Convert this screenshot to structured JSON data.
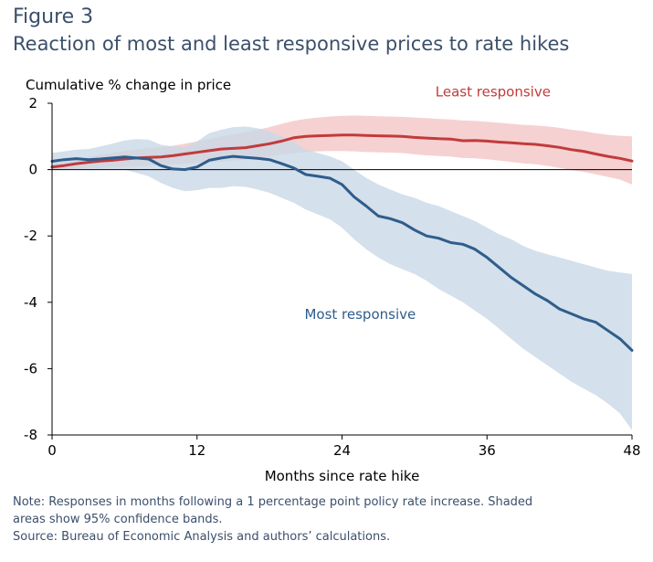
{
  "figure_label": "Figure 3",
  "title": "Reaction of most and least responsive prices to rate hikes",
  "note_lines": [
    "Note: Responses in months following a 1 percentage point policy rate increase. Shaded",
    "areas show 95% confidence bands."
  ],
  "source": "Source: Bureau of Economic Analysis and authors’ calculations.",
  "colors": {
    "least_line": "#c23b3b",
    "least_band": "#f4c9c9",
    "most_line": "#2f5d8c",
    "most_band": "#c9d8e6"
  },
  "chart_data": {
    "type": "line",
    "ylabel": "Cumulative % change in price",
    "xlabel": "Months since rate hike",
    "xlim": [
      0,
      48
    ],
    "ylim": [
      -8,
      2
    ],
    "xticks": [
      0,
      12,
      24,
      36,
      48
    ],
    "yticks": [
      2,
      0,
      -2,
      -4,
      -6,
      -8
    ],
    "x": [
      0,
      1,
      2,
      3,
      4,
      5,
      6,
      7,
      8,
      9,
      10,
      11,
      12,
      13,
      14,
      15,
      16,
      17,
      18,
      19,
      20,
      21,
      22,
      23,
      24,
      25,
      26,
      27,
      28,
      29,
      30,
      31,
      32,
      33,
      34,
      35,
      36,
      37,
      38,
      39,
      40,
      41,
      42,
      43,
      44,
      45,
      46,
      47,
      48
    ],
    "series": [
      {
        "name": "Least responsive",
        "values": [
          0.08,
          0.12,
          0.18,
          0.22,
          0.26,
          0.28,
          0.32,
          0.35,
          0.37,
          0.38,
          0.42,
          0.47,
          0.52,
          0.57,
          0.62,
          0.64,
          0.66,
          0.72,
          0.78,
          0.86,
          0.96,
          1.0,
          1.02,
          1.03,
          1.04,
          1.04,
          1.03,
          1.02,
          1.01,
          1.0,
          0.97,
          0.95,
          0.93,
          0.92,
          0.87,
          0.88,
          0.86,
          0.83,
          0.81,
          0.78,
          0.76,
          0.72,
          0.67,
          0.6,
          0.55,
          0.47,
          0.4,
          0.34,
          0.26
        ],
        "lower": [
          0.0,
          0.0,
          0.02,
          0.04,
          0.05,
          0.06,
          0.08,
          0.1,
          0.12,
          0.13,
          0.15,
          0.18,
          0.2,
          0.22,
          0.24,
          0.27,
          0.3,
          0.35,
          0.4,
          0.45,
          0.5,
          0.53,
          0.55,
          0.56,
          0.56,
          0.55,
          0.53,
          0.52,
          0.51,
          0.5,
          0.46,
          0.43,
          0.41,
          0.39,
          0.35,
          0.34,
          0.31,
          0.27,
          0.23,
          0.19,
          0.16,
          0.11,
          0.05,
          -0.02,
          -0.07,
          -0.14,
          -0.22,
          -0.3,
          -0.45
        ],
        "upper": [
          0.18,
          0.25,
          0.32,
          0.38,
          0.44,
          0.5,
          0.56,
          0.61,
          0.65,
          0.67,
          0.72,
          0.78,
          0.85,
          0.92,
          1.0,
          1.06,
          1.12,
          1.2,
          1.28,
          1.38,
          1.47,
          1.53,
          1.57,
          1.6,
          1.62,
          1.63,
          1.62,
          1.61,
          1.6,
          1.59,
          1.57,
          1.55,
          1.53,
          1.51,
          1.48,
          1.47,
          1.44,
          1.41,
          1.38,
          1.35,
          1.33,
          1.3,
          1.26,
          1.2,
          1.16,
          1.1,
          1.05,
          1.02,
          1.0
        ]
      },
      {
        "name": "Most responsive",
        "values": [
          0.25,
          0.3,
          0.33,
          0.3,
          0.32,
          0.35,
          0.38,
          0.35,
          0.32,
          0.12,
          0.02,
          0.0,
          0.08,
          0.28,
          0.35,
          0.4,
          0.37,
          0.34,
          0.3,
          0.18,
          0.05,
          -0.15,
          -0.2,
          -0.26,
          -0.45,
          -0.82,
          -1.1,
          -1.4,
          -1.48,
          -1.6,
          -1.82,
          -2.0,
          -2.07,
          -2.2,
          -2.25,
          -2.4,
          -2.65,
          -2.95,
          -3.25,
          -3.5,
          -3.75,
          -3.95,
          -4.2,
          -4.35,
          -4.5,
          -4.6,
          -4.85,
          -5.1,
          -5.45
        ],
        "lower": [
          0.0,
          0.0,
          0.0,
          -0.02,
          0.0,
          0.0,
          0.0,
          -0.1,
          -0.2,
          -0.4,
          -0.55,
          -0.65,
          -0.62,
          -0.55,
          -0.55,
          -0.5,
          -0.52,
          -0.6,
          -0.7,
          -0.85,
          -1.0,
          -1.2,
          -1.35,
          -1.5,
          -1.75,
          -2.1,
          -2.4,
          -2.65,
          -2.85,
          -3.0,
          -3.15,
          -3.35,
          -3.6,
          -3.8,
          -4.0,
          -4.25,
          -4.5,
          -4.8,
          -5.1,
          -5.4,
          -5.65,
          -5.9,
          -6.15,
          -6.4,
          -6.6,
          -6.8,
          -7.05,
          -7.35,
          -7.85
        ],
        "upper": [
          0.5,
          0.55,
          0.6,
          0.62,
          0.7,
          0.78,
          0.88,
          0.92,
          0.9,
          0.75,
          0.7,
          0.68,
          0.85,
          1.1,
          1.2,
          1.28,
          1.3,
          1.25,
          1.15,
          1.0,
          0.82,
          0.6,
          0.5,
          0.4,
          0.25,
          0.0,
          -0.25,
          -0.45,
          -0.6,
          -0.75,
          -0.85,
          -1.0,
          -1.1,
          -1.25,
          -1.4,
          -1.55,
          -1.75,
          -1.95,
          -2.1,
          -2.3,
          -2.45,
          -2.55,
          -2.65,
          -2.75,
          -2.85,
          -2.95,
          -3.05,
          -3.1,
          -3.15
        ]
      }
    ],
    "annotations": [
      {
        "series": "Least responsive",
        "text": "Least responsive",
        "x": 36.5,
        "y": 2.2
      },
      {
        "series": "Most responsive",
        "text": "Most responsive",
        "x": 25.5,
        "y": -4.5
      }
    ],
    "grid": false,
    "zero_line": true,
    "legend": "none"
  }
}
